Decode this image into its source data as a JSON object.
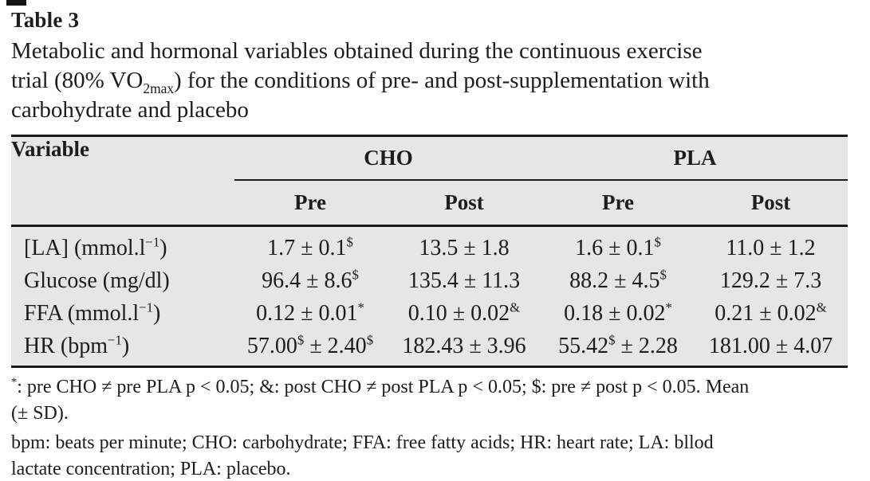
{
  "header": {
    "label": "Table 3",
    "caption_lines": [
      "Metabolic and hormonal variables obtained during the continuous exercise",
      "trial (80% VO_{2max}) for the conditions of pre- and post-supplementation with",
      "carbohydrate and placebo"
    ]
  },
  "table": {
    "variable_header": "Variable",
    "groups": [
      {
        "label": "CHO"
      },
      {
        "label": "PLA"
      }
    ],
    "sub_headers": [
      "Pre",
      "Post",
      "Pre",
      "Post"
    ],
    "rows": [
      {
        "variable": "[LA] (mmol.l^{−1})",
        "values": [
          "1.7 ± 0.1^{$}",
          "13.5 ± 1.8",
          "1.6 ± 0.1^{$}",
          "11.0 ± 1.2"
        ]
      },
      {
        "variable": "Glucose (mg/dl)",
        "values": [
          "96.4 ± 8.6^{$}",
          "135.4 ± 11.3",
          "88.2 ± 4.5^{$}",
          "129.2 ± 7.3"
        ]
      },
      {
        "variable": "FFA (mmol.l^{−1})",
        "values": [
          "0.12 ± 0.01^{*}",
          "0.10 ± 0.02^{&}",
          "0.18 ± 0.02^{*}",
          "0.21 ± 0.02^{&}"
        ]
      },
      {
        "variable": "HR (bpm^{−1})",
        "values": [
          "57.00^{$} ± 2.40^{$}",
          "182.43 ± 3.96",
          "55.42^{$} ± 2.28",
          "181.00 ± 4.07"
        ]
      }
    ]
  },
  "footnotes": {
    "significance_lines": [
      "^{*}: pre CHO ≠ pre PLA p < 0.05; &: post CHO ≠ post PLA p < 0.05; $: pre ≠ post p < 0.05. Mean",
      "(± SD)."
    ],
    "abbreviation_lines": [
      "bpm: beats per minute; CHO: carbohydrate; FFA: free fatty acids; HR: heart rate; LA: bllod",
      "lactate concentration; PLA: placebo."
    ]
  },
  "colors": {
    "table_bg": "#e6e6e7",
    "rule": "#1a1a1a",
    "text": "#1e1c1d"
  }
}
